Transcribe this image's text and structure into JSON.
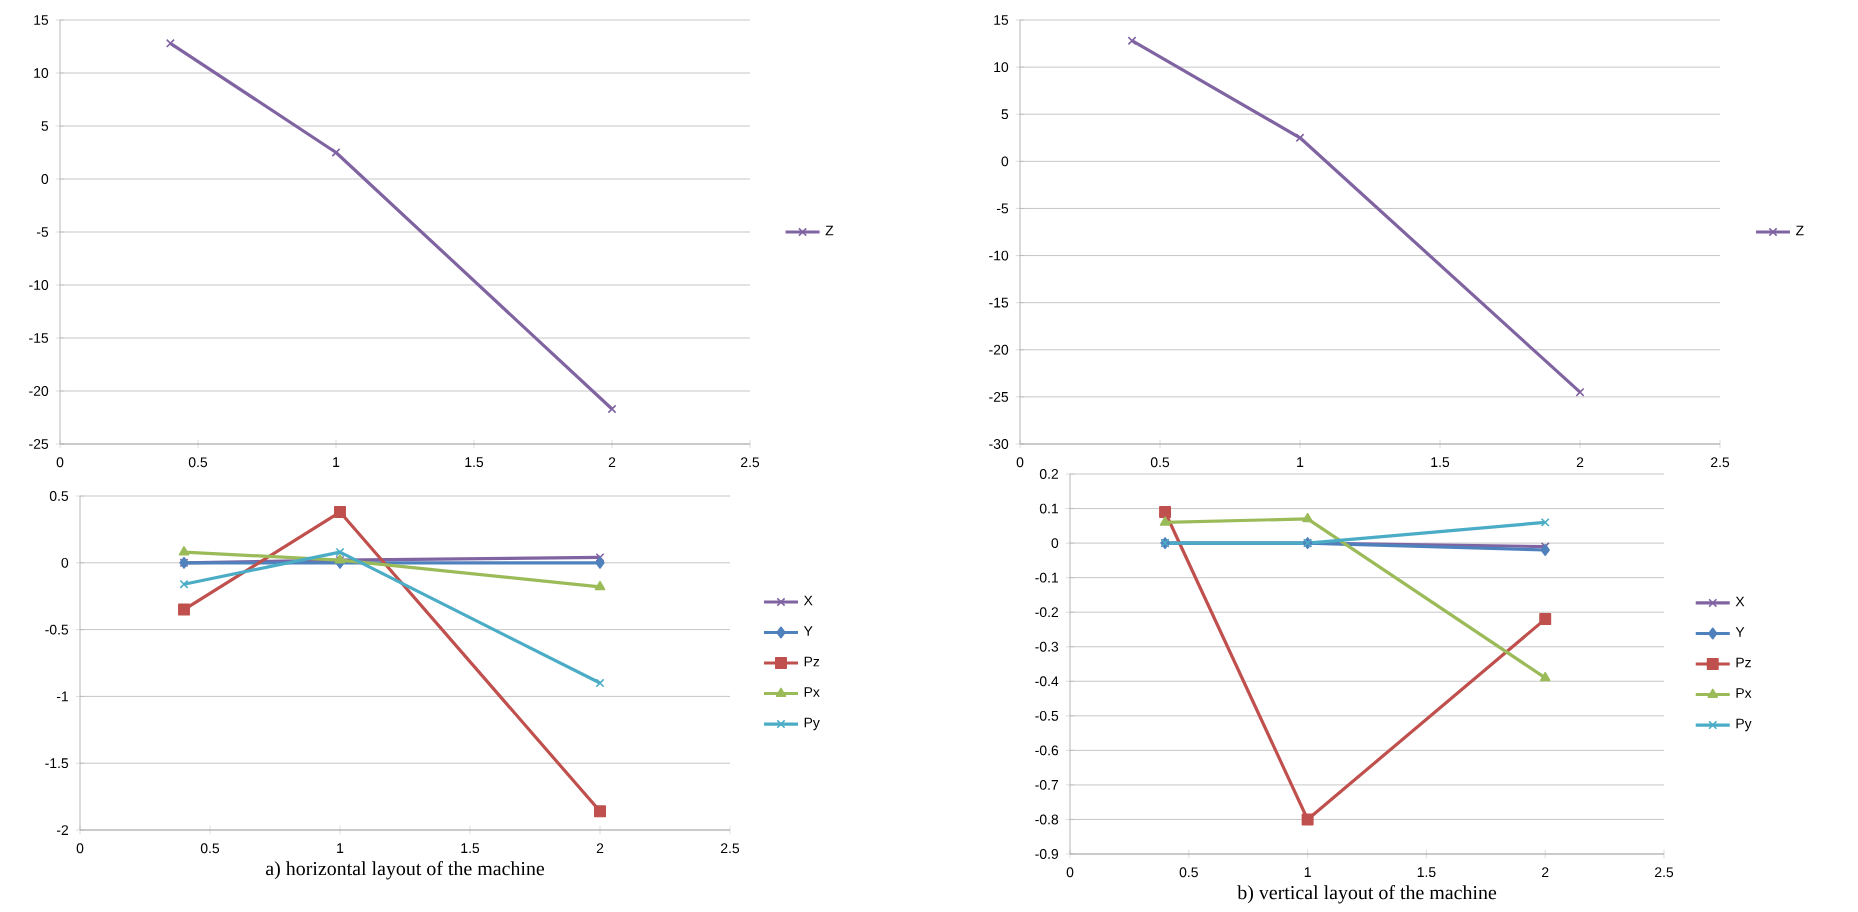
{
  "chart_data": [
    {
      "type": "line",
      "x": [
        0.4,
        1,
        2
      ],
      "xlim": [
        0,
        2.5
      ],
      "xticks": [
        0,
        0.5,
        1,
        1.5,
        2,
        2.5
      ],
      "ylim": [
        -25,
        15
      ],
      "yticks": [
        -25,
        -20,
        -15,
        -10,
        -5,
        0,
        5,
        10,
        15
      ],
      "grid": "y",
      "legend": "right",
      "series": [
        {
          "name": "Z",
          "color": "#8064a2",
          "marker": "cross",
          "values": [
            12.8,
            2.5,
            -21.7
          ]
        }
      ]
    },
    {
      "type": "line",
      "x": [
        0.4,
        1,
        2
      ],
      "xlim": [
        0,
        2.5
      ],
      "xticks": [
        0,
        0.5,
        1,
        1.5,
        2,
        2.5
      ],
      "ylim": [
        -2,
        0.5
      ],
      "yticks": [
        -2,
        -1.5,
        -1,
        -0.5,
        0,
        0.5
      ],
      "grid": "y",
      "legend": "right",
      "annotations": [
        "a) horizontal layout of the machine"
      ],
      "series": [
        {
          "name": "X",
          "color": "#8064a2",
          "marker": "cross",
          "values": [
            0,
            0.02,
            0.04
          ]
        },
        {
          "name": "Y",
          "color": "#4f81bd",
          "marker": "diamond",
          "values": [
            0,
            0,
            0
          ]
        },
        {
          "name": "Pz",
          "color": "#c0504d",
          "marker": "square",
          "values": [
            -0.35,
            0.38,
            -1.86
          ]
        },
        {
          "name": "Px",
          "color": "#9bbb59",
          "marker": "triangle",
          "values": [
            0.08,
            0.02,
            -0.18
          ]
        },
        {
          "name": "Py",
          "color": "#4bacc6",
          "marker": "cross",
          "values": [
            -0.16,
            0.08,
            -0.9
          ]
        }
      ]
    },
    {
      "type": "line",
      "x": [
        0.4,
        1,
        2
      ],
      "xlim": [
        0,
        2.5
      ],
      "xticks": [
        0,
        0.5,
        1,
        1.5,
        2,
        2.5
      ],
      "ylim": [
        -30,
        15
      ],
      "yticks": [
        -30,
        -25,
        -20,
        -15,
        -10,
        -5,
        0,
        5,
        10,
        15
      ],
      "grid": "y",
      "legend": "right",
      "series": [
        {
          "name": "Z",
          "color": "#8064a2",
          "marker": "cross",
          "values": [
            12.8,
            2.5,
            -24.5
          ]
        }
      ]
    },
    {
      "type": "line",
      "x": [
        0.4,
        1,
        2
      ],
      "xlim": [
        0,
        2.5
      ],
      "xticks": [
        0,
        0.5,
        1,
        1.5,
        2,
        2.5
      ],
      "ylim": [
        -0.9,
        0.2
      ],
      "yticks": [
        -0.9,
        -0.8,
        -0.7,
        -0.6,
        -0.5,
        -0.4,
        -0.3,
        -0.2,
        -0.1,
        0,
        0.1,
        0.2
      ],
      "grid": "y",
      "legend": "right",
      "annotations": [
        "b) vertical layout of the machine"
      ],
      "series": [
        {
          "name": "X",
          "color": "#8064a2",
          "marker": "cross",
          "values": [
            0,
            0,
            -0.01
          ]
        },
        {
          "name": "Y",
          "color": "#4f81bd",
          "marker": "diamond",
          "values": [
            0,
            0,
            -0.02
          ]
        },
        {
          "name": "Pz",
          "color": "#c0504d",
          "marker": "square",
          "values": [
            0.09,
            -0.8,
            -0.22
          ]
        },
        {
          "name": "Px",
          "color": "#9bbb59",
          "marker": "triangle",
          "values": [
            0.06,
            0.07,
            -0.39
          ]
        },
        {
          "name": "Py",
          "color": "#4bacc6",
          "marker": "cross",
          "values": [
            0,
            0,
            0.06
          ]
        }
      ]
    }
  ]
}
